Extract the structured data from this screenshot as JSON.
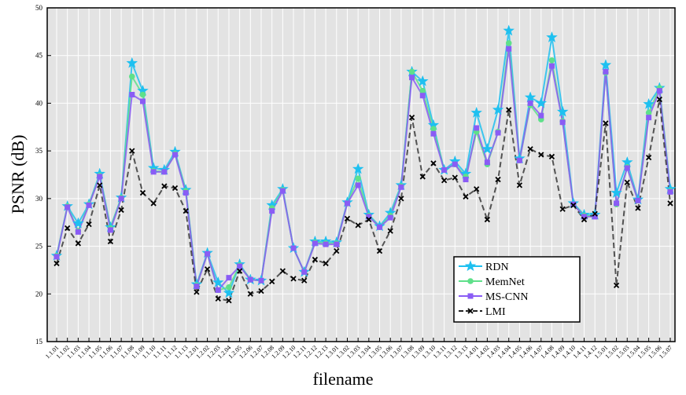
{
  "chart_data": {
    "type": "line",
    "xlabel": "filename",
    "ylabel": "PSNR (dB)",
    "categories": [
      "1.1.01",
      "1.1.02",
      "1.1.03",
      "1.1.04",
      "1.1.05",
      "1.1.06",
      "1.1.07",
      "1.1.08",
      "1.1.09",
      "1.1.10",
      "1.1.11",
      "1.1.12",
      "1.1.13",
      "1.2.01",
      "1.2.02",
      "1.2.03",
      "1.2.04",
      "1.2.05",
      "1.2.06",
      "1.2.07",
      "1.2.08",
      "1.2.09",
      "1.2.10",
      "1.2.11",
      "1.2.12",
      "1.2.13",
      "1.3.01",
      "1.3.02",
      "1.3.03",
      "1.3.04",
      "1.3.05",
      "1.3.06",
      "1.3.07",
      "1.3.08",
      "1.3.09",
      "1.3.10",
      "1.3.11",
      "1.3.12",
      "1.3.13",
      "1.4.01",
      "1.4.02",
      "1.4.03",
      "1.4.04",
      "1.4.05",
      "1.4.06",
      "1.4.07",
      "1.4.08",
      "1.4.09",
      "1.4.10",
      "1.4.11",
      "1.4.12",
      "1.5.01",
      "1.5.02",
      "1.5.03",
      "1.5.04",
      "1.5.05",
      "1.5.06",
      "1.5.07"
    ],
    "series": [
      {
        "name": "RDN",
        "color": "#1ec0f0",
        "marker": "star",
        "dashed": false,
        "values": [
          24.0,
          29.2,
          27.4,
          29.4,
          32.6,
          27.0,
          30.1,
          44.2,
          41.3,
          33.2,
          33.0,
          34.9,
          30.9,
          21.0,
          24.3,
          21.2,
          20.1,
          23.1,
          21.5,
          21.4,
          29.3,
          31.0,
          24.8,
          22.3,
          25.5,
          25.5,
          25.4,
          29.6,
          33.1,
          28.3,
          27.1,
          28.5,
          31.4,
          43.3,
          42.3,
          37.7,
          33.0,
          33.9,
          32.6,
          39.0,
          35.2,
          39.3,
          47.6,
          34.2,
          40.6,
          40.0,
          46.9,
          39.1,
          29.5,
          28.3,
          28.3,
          44.0,
          30.6,
          33.8,
          29.9,
          39.9,
          41.6,
          31.0
        ]
      },
      {
        "name": "MemNet",
        "color": "#5fe08a",
        "marker": "circle",
        "dashed": false,
        "values": [
          24.0,
          29.2,
          26.6,
          29.4,
          32.4,
          26.9,
          30.1,
          42.8,
          40.9,
          32.9,
          32.8,
          34.7,
          30.8,
          20.9,
          24.2,
          20.4,
          20.7,
          23.0,
          21.5,
          21.4,
          29.0,
          30.9,
          24.8,
          22.3,
          25.4,
          25.3,
          25.3,
          29.5,
          32.1,
          28.2,
          27.0,
          28.2,
          31.3,
          43.3,
          41.3,
          37.3,
          33.0,
          33.6,
          32.3,
          37.0,
          33.6,
          37.0,
          46.3,
          34.0,
          39.8,
          38.3,
          44.5,
          38.1,
          29.4,
          28.2,
          28.2,
          43.2,
          29.4,
          33.3,
          29.8,
          39.0,
          41.6,
          30.8
        ]
      },
      {
        "name": "MS-CNN",
        "color": "#8a5cf5",
        "marker": "square",
        "dashed": false,
        "values": [
          23.9,
          29.1,
          26.5,
          29.3,
          32.3,
          26.7,
          30.0,
          40.9,
          40.2,
          32.8,
          32.8,
          34.6,
          30.6,
          20.8,
          24.2,
          20.4,
          21.7,
          22.9,
          21.5,
          21.4,
          28.7,
          30.8,
          24.8,
          22.3,
          25.3,
          25.2,
          25.2,
          29.5,
          31.4,
          28.1,
          27.0,
          28.0,
          31.2,
          42.7,
          40.8,
          36.8,
          33.0,
          33.6,
          32.0,
          37.4,
          33.8,
          36.9,
          45.7,
          34.0,
          40.0,
          38.7,
          43.9,
          38.0,
          29.4,
          28.1,
          28.1,
          43.3,
          29.5,
          33.2,
          29.8,
          38.5,
          41.3,
          30.7
        ]
      },
      {
        "name": "LMI",
        "color": "#222222",
        "marker": "x",
        "dashed": true,
        "values": [
          23.2,
          26.9,
          25.3,
          27.3,
          31.4,
          25.5,
          28.8,
          35.0,
          30.6,
          29.5,
          31.3,
          31.1,
          28.7,
          20.2,
          22.6,
          19.5,
          19.3,
          22.4,
          20.0,
          20.3,
          21.3,
          22.4,
          21.6,
          21.4,
          23.6,
          23.2,
          24.5,
          27.9,
          27.2,
          27.8,
          24.5,
          26.6,
          30.0,
          38.5,
          32.3,
          33.7,
          31.9,
          32.2,
          30.2,
          31.0,
          27.8,
          32.0,
          39.3,
          31.4,
          35.2,
          34.6,
          34.4,
          28.9,
          29.3,
          27.8,
          28.4,
          37.9,
          20.9,
          31.7,
          29.0,
          34.3,
          40.4,
          29.5
        ]
      }
    ],
    "ylim": [
      15,
      50
    ],
    "yticks": [
      15,
      20,
      25,
      30,
      35,
      40,
      45,
      50
    ],
    "grid": true,
    "legend": "lower right"
  }
}
